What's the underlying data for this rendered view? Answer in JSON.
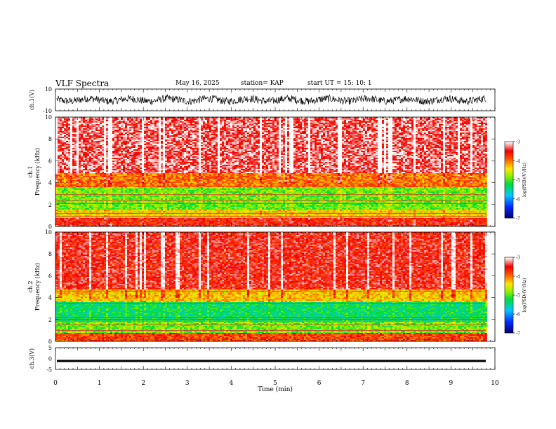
{
  "header": {
    "title": "VLF Spectra",
    "date": "May 16, 2025",
    "station": "station= KAP",
    "start": "start  UT  =   15: 10: 1"
  },
  "colors": {
    "spectrogram_low": "#0000a0",
    "spectrogram_mid": "#00e000",
    "spectrogram_high": "#ff0000",
    "trace": "#000000"
  },
  "chart_data": [
    {
      "type": "line",
      "name": "ch1-waveform",
      "ylabel": "ch.1(V)",
      "ylim": [
        -10,
        10
      ],
      "yticks": [
        "10",
        "-10"
      ],
      "xlim": [
        0,
        10
      ],
      "description_values": "noisy broadband waveform roughly between -5 and 5 V"
    },
    {
      "type": "heatmap",
      "name": "ch1-spectrogram",
      "ylabel": "ch.1 Frequency  (kHz)",
      "ylim": [
        0,
        10
      ],
      "yticks": [
        "0",
        "2",
        "4",
        "6",
        "8",
        "10"
      ],
      "xlim": [
        0,
        9.85
      ],
      "bands": [
        {
          "from": 0,
          "to": 0.8,
          "level": -3.6
        },
        {
          "from": 0.8,
          "to": 1.6,
          "level": -4.4
        },
        {
          "from": 1.6,
          "to": 3.6,
          "level": -4.9
        },
        {
          "from": 3.6,
          "to": 5.0,
          "level": -4.0
        },
        {
          "from": 5.0,
          "to": 10,
          "level": -3.3
        }
      ],
      "lines_khz": [
        0.9,
        1.2,
        2.1,
        2.35,
        2.9,
        3.7
      ]
    },
    {
      "type": "heatmap",
      "name": "ch2-spectrogram",
      "ylabel": "ch.2 Frequency  (kHz)",
      "ylim": [
        0,
        10
      ],
      "yticks": [
        "0",
        "2",
        "4",
        "6",
        "8",
        "10"
      ],
      "xlim": [
        0,
        9.85
      ],
      "bands": [
        {
          "from": 0,
          "to": 0.8,
          "level": -3.8
        },
        {
          "from": 0.8,
          "to": 1.8,
          "level": -4.9
        },
        {
          "from": 1.8,
          "to": 3.6,
          "level": -5.3
        },
        {
          "from": 3.6,
          "to": 4.8,
          "level": -4.3
        },
        {
          "from": 4.8,
          "to": 10,
          "level": -3.5
        }
      ],
      "lines_khz": [
        1.0,
        1.5,
        2.0,
        2.2,
        3.5,
        4.6
      ]
    },
    {
      "type": "line",
      "name": "ch3-waveform",
      "ylabel": "ch.3(V)",
      "ylim": [
        -5,
        5
      ],
      "yticks": [
        "5",
        "0",
        "-5"
      ],
      "xlim": [
        0,
        10
      ],
      "description_values": "near-constant thick trace at about -1 V"
    }
  ],
  "x_axis": {
    "label": "Time  (min)",
    "ticks": [
      "0",
      "1",
      "2",
      "3",
      "4",
      "5",
      "6",
      "7",
      "8",
      "9",
      "10"
    ],
    "range": [
      0,
      10
    ]
  },
  "colorbar": {
    "label": "log(PSD)(V²/Hz)",
    "range": [
      -7,
      -3
    ],
    "ticks": [
      "-3",
      "-4",
      "-5",
      "-6",
      "-7"
    ]
  }
}
